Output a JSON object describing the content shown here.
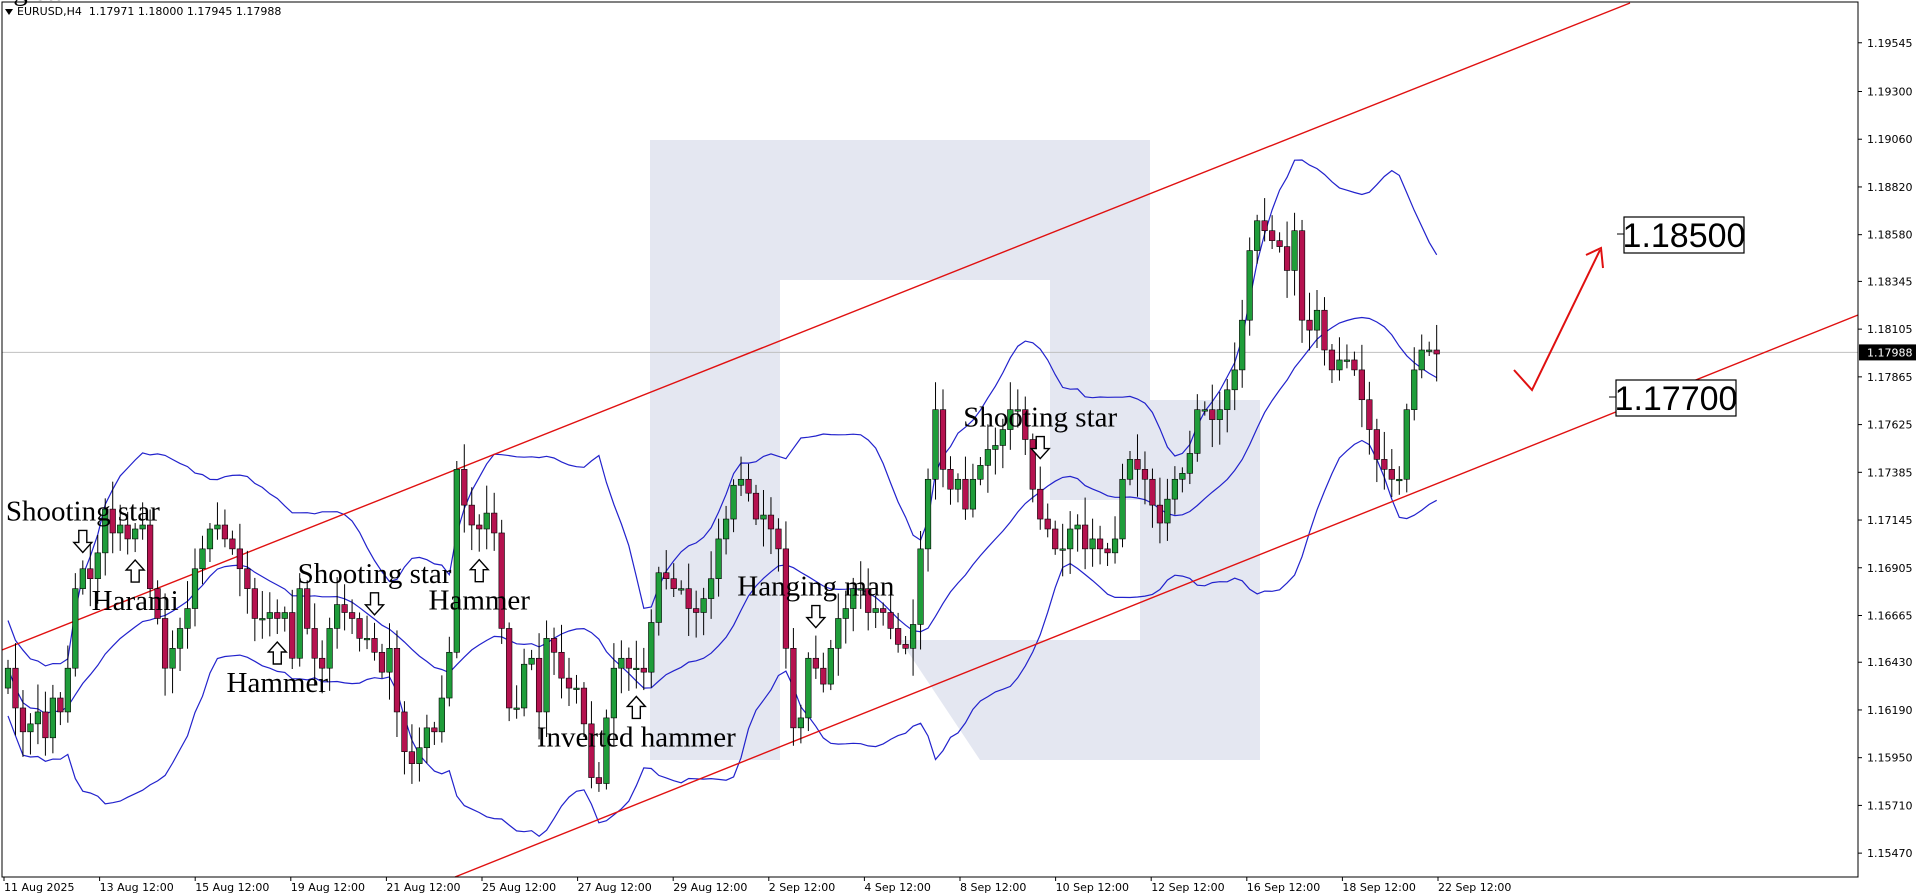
{
  "header": {
    "symbol": "EURUSD,H4",
    "ohlc": "1.17971 1.18000 1.17945 1.17988"
  },
  "colors": {
    "bull": "#1f9d3a",
    "bear": "#b5124f",
    "bands": "#2222cc",
    "channel": "#e01010",
    "arrow": "#e01010",
    "watermark": "#e4e7f1",
    "current_line": "#c0c0c0"
  },
  "chart_data": {
    "type": "candlestick",
    "title": "EURUSD,H4",
    "ylim": [
      1.1535,
      1.1975
    ],
    "y_ticks": [
      "1.19545",
      "1.19300",
      "1.19060",
      "1.18820",
      "1.18580",
      "1.18345",
      "1.18105",
      "1.17865",
      "1.17625",
      "1.17385",
      "1.17145",
      "1.16905",
      "1.16665",
      "1.16430",
      "1.16190",
      "1.15950",
      "1.15710",
      "1.15470"
    ],
    "x_ticks": [
      "11 Aug 2025",
      "13 Aug 12:00",
      "15 Aug 12:00",
      "19 Aug 12:00",
      "21 Aug 12:00",
      "25 Aug 12:00",
      "27 Aug 12:00",
      "29 Aug 12:00",
      "2 Sep 12:00",
      "4 Sep 12:00",
      "8 Sep 12:00",
      "10 Sep 12:00",
      "12 Sep 12:00",
      "16 Sep 12:00",
      "18 Sep 12:00",
      "22 Sep 12:00"
    ],
    "current_price": "1.17988",
    "closes": [
      1.164,
      1.162,
      1.1608,
      1.1612,
      1.1618,
      1.1605,
      1.1625,
      1.1618,
      1.164,
      1.168,
      1.169,
      1.1685,
      1.1698,
      1.172,
      1.1708,
      1.1712,
      1.1705,
      1.171,
      1.1712,
      1.168,
      1.1665,
      1.164,
      1.165,
      1.166,
      1.167,
      1.169,
      1.17,
      1.171,
      1.1712,
      1.1705,
      1.17,
      1.169,
      1.168,
      1.1665,
      1.1665,
      1.1668,
      1.1665,
      1.1668,
      1.1645,
      1.168,
      1.166,
      1.1645,
      1.164,
      1.166,
      1.1672,
      1.1668,
      1.1665,
      1.1655,
      1.1655,
      1.1648,
      1.1638,
      1.165,
      1.1618,
      1.1598,
      1.1592,
      1.16,
      1.161,
      1.1608,
      1.1625,
      1.1648,
      1.174,
      1.1722,
      1.1712,
      1.171,
      1.1718,
      1.1708,
      1.166,
      1.162,
      1.162,
      1.1642,
      1.1645,
      1.1618,
      1.1655,
      1.1648,
      1.1635,
      1.163,
      1.163,
      1.1612,
      1.1585,
      1.1582,
      1.1615,
      1.164,
      1.1645,
      1.164,
      1.164,
      1.1638,
      1.1663,
      1.1688,
      1.1685,
      1.168,
      1.168,
      1.167,
      1.1668,
      1.1675,
      1.1685,
      1.1705,
      1.1715,
      1.1732,
      1.1735,
      1.1728,
      1.1715,
      1.1717,
      1.171,
      1.17,
      1.165,
      1.161,
      1.1615,
      1.1645,
      1.164,
      1.1632,
      1.165,
      1.1665,
      1.167,
      1.168,
      1.168,
      1.1668,
      1.167,
      1.1668,
      1.166,
      1.1652,
      1.165,
      1.1662,
      1.17,
      1.1735,
      1.177,
      1.174,
      1.173,
      1.1735,
      1.172,
      1.1735,
      1.1742,
      1.175,
      1.1752,
      1.176,
      1.177,
      1.177,
      1.1755,
      1.173,
      1.1715,
      1.171,
      1.17,
      1.17,
      1.171,
      1.1712,
      1.17,
      1.1705,
      1.17,
      1.1698,
      1.1705,
      1.1735,
      1.1745,
      1.174,
      1.1735,
      1.1722,
      1.1713,
      1.1725,
      1.1735,
      1.1738,
      1.1748,
      1.177,
      1.177,
      1.1765,
      1.177,
      1.178,
      1.179,
      1.1815,
      1.185,
      1.1865,
      1.186,
      1.1855,
      1.1852,
      1.184,
      1.186,
      1.1815,
      1.181,
      1.182,
      1.18,
      1.179,
      1.1795,
      1.1795,
      1.179,
      1.1775,
      1.176,
      1.1745,
      1.174,
      1.1735,
      1.1735,
      1.177,
      1.179,
      1.18,
      1.18,
      1.1798
    ],
    "annotations": [
      {
        "text": "Shooting star",
        "arrow": "down"
      },
      {
        "text": "Harami",
        "arrow": "up"
      },
      {
        "text": "Hammer",
        "arrow": "up"
      },
      {
        "text": "Shooting star",
        "arrow": "down"
      },
      {
        "text": "Hammer",
        "arrow": "up"
      },
      {
        "text": "Inverted hammer",
        "arrow": "up"
      },
      {
        "text": "Hanging man",
        "arrow": "down"
      },
      {
        "text": "Shooting star",
        "arrow": "down"
      },
      {
        "text": "Shooting star",
        "arrow": "down"
      }
    ],
    "levels": [
      "1.18500",
      "1.17700"
    ]
  }
}
